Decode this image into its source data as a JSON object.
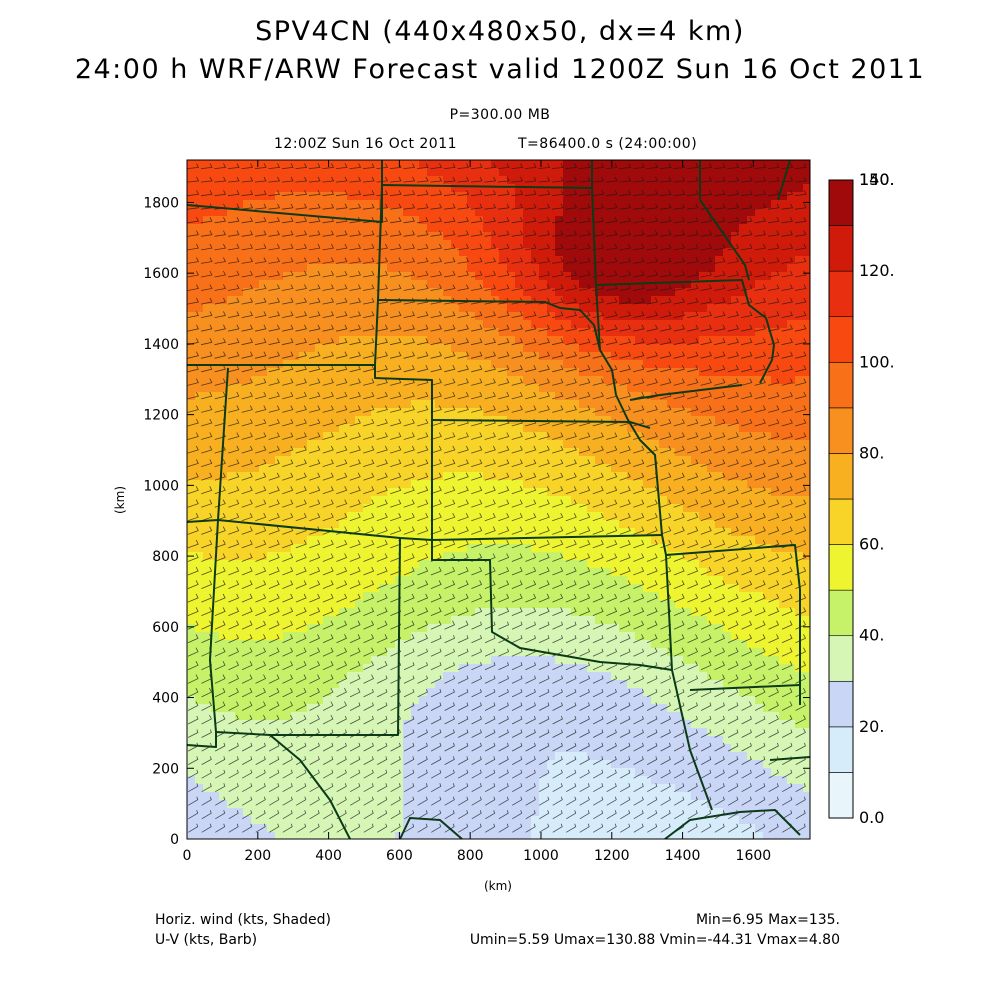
{
  "titles": {
    "line1": "SPV4CN (440x480x50, dx=4 km)",
    "line2": "24:00 h WRF/ARW Forecast valid 1200Z Sun 16 Oct 2011",
    "level": "P=300.00 MB",
    "time": "12:00Z Sun 16 Oct 2011",
    "valid": "T=86400.0 s (24:00:00)"
  },
  "footer": {
    "field1": "Horiz. wind (kts, Shaded)",
    "field2": "U-V (kts, Barb)",
    "stats1": "Min=6.95 Max=135.",
    "stats2": "Umin=5.59 Umax=130.88 Vmin=-44.31 Vmax=4.80"
  },
  "axes": {
    "x_label": "(km)",
    "y_label": "(km)",
    "x_range": [
      0,
      1760
    ],
    "y_range": [
      0,
      1920
    ],
    "x_ticks": [
      "0",
      "200",
      "400",
      "600",
      "800",
      "1000",
      "1200",
      "1400",
      "1600"
    ],
    "y_ticks": [
      "0",
      "200",
      "400",
      "600",
      "800",
      "1000",
      "1200",
      "1400",
      "1600",
      "1800"
    ]
  },
  "colorbar": {
    "labels": [
      "0.0",
      "20.",
      "40.",
      "60.",
      "80.",
      "100.",
      "120.",
      "140.",
      "150."
    ],
    "colors": [
      "#e8f6fc",
      "#d6ecfa",
      "#cad6f6",
      "#d6f6b6",
      "#c6f26a",
      "#eef430",
      "#f8d428",
      "#f8b020",
      "#f89020",
      "#f87018",
      "#f84a10",
      "#e83010",
      "#d01a0a",
      "#a00a0a"
    ]
  },
  "chart_data": {
    "type": "heatmap",
    "title": "SPV4CN (440x480x50, dx=4 km)",
    "field": "Horiz. wind (kts, Shaded)",
    "overlay": "U-V (kts, Barb)",
    "xlabel": "(km)",
    "ylabel": "(km)",
    "xlim": [
      0,
      1760
    ],
    "ylim": [
      0,
      1920
    ],
    "value_range": [
      0,
      150
    ],
    "min": 6.95,
    "max": 135
  }
}
